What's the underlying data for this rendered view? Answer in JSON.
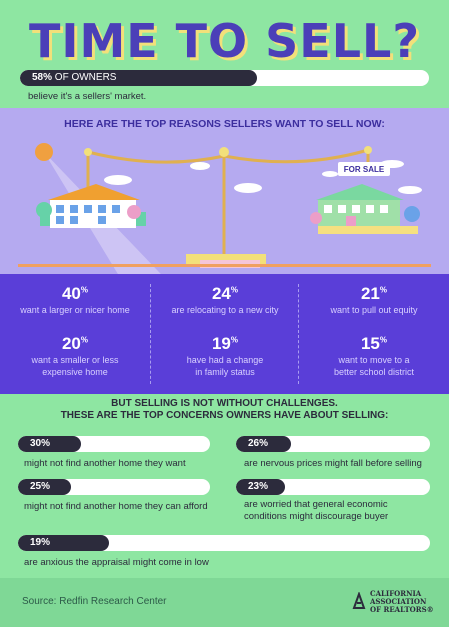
{
  "title": "TIME TO SELL?",
  "top_stat": {
    "value": 58,
    "pct_label": "58%",
    "label": "OF OWNERS",
    "caption": "believe it's a sellers' market."
  },
  "reasons_heading": "HERE ARE THE TOP REASONS SELLERS WANT TO SELL NOW:",
  "sign_text": "FOR SALE",
  "reasons": [
    {
      "num": "40",
      "unit": "%",
      "text1": "want a larger or nicer home",
      "text2": ""
    },
    {
      "num": "24",
      "unit": "%",
      "text1": "are relocating to a new city",
      "text2": ""
    },
    {
      "num": "21",
      "unit": "%",
      "text1": "want to pull out equity",
      "text2": ""
    },
    {
      "num": "20",
      "unit": "%",
      "text1": "want a smaller or less",
      "text2": "expensive home"
    },
    {
      "num": "19",
      "unit": "%",
      "text1": "have had a change",
      "text2": "in family status"
    },
    {
      "num": "15",
      "unit": "%",
      "text1": "want to move to a",
      "text2": "better school district"
    }
  ],
  "challenges_heading1": "BUT SELLING IS NOT WITHOUT CHALLENGES.",
  "challenges_heading2": "THESE ARE THE TOP CONCERNS OWNERS HAVE ABOUT SELLING:",
  "concerns": [
    {
      "value": 30,
      "pct": "30%",
      "text1": "might not find another home they want",
      "text2": ""
    },
    {
      "value": 26,
      "pct": "26%",
      "text1": "are nervous prices might fall before selling",
      "text2": ""
    },
    {
      "value": 25,
      "pct": "25%",
      "text1": "might not find another home they can afford",
      "text2": ""
    },
    {
      "value": 23,
      "pct": "23%",
      "text1": "are worried that general economic",
      "text2": "conditions might discourage buyer"
    },
    {
      "value": 19,
      "pct": "19%",
      "text1": "are anxious the appraisal might come in low",
      "text2": ""
    }
  ],
  "source": "Source: Redfin Research Center",
  "logo": {
    "line1": "CALIFORNIA",
    "line2": "ASSOCIATION",
    "line3": "OF REALTORS®"
  },
  "colors": {
    "purple": "#5a3ed8",
    "lavender": "#b5aaf0",
    "green": "#8ee6a2",
    "dark": "#2c2b3c",
    "yellow": "#f2e07a"
  }
}
